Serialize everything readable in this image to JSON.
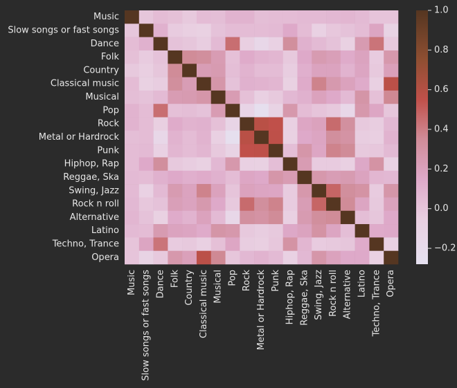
{
  "chart_data": {
    "type": "heatmap",
    "title": "",
    "xlabel": "",
    "ylabel": "",
    "categories": [
      "Music",
      "Slow songs or fast songs",
      "Dance",
      "Folk",
      "Country",
      "Classical music",
      "Musical",
      "Pop",
      "Rock",
      "Metal or Hardrock",
      "Punk",
      "Hiphop, Rap",
      "Reggae, Ska",
      "Swing, Jazz",
      "Rock n roll",
      "Alternative",
      "Latino",
      "Techno, Trance",
      "Opera"
    ],
    "matrix": [
      [
        1.0,
        0.0,
        0.05,
        0.03,
        -0.02,
        0.05,
        0.04,
        0.1,
        0.1,
        0.04,
        0.05,
        0.05,
        0.06,
        0.06,
        0.07,
        0.08,
        0.06,
        0.01,
        0.01
      ],
      [
        0.0,
        1.0,
        0.11,
        -0.03,
        -0.05,
        -0.07,
        0.02,
        0.05,
        0.05,
        0.05,
        0.06,
        0.15,
        0.05,
        -0.08,
        -0.01,
        0.02,
        0.05,
        0.18,
        -0.1
      ],
      [
        0.05,
        0.11,
        1.0,
        0.02,
        0.0,
        -0.04,
        0.06,
        0.45,
        -0.05,
        -0.15,
        -0.08,
        0.33,
        0.11,
        0.06,
        0.02,
        -0.07,
        0.25,
        0.43,
        -0.02
      ],
      [
        0.03,
        -0.03,
        0.02,
        1.0,
        0.35,
        0.33,
        0.24,
        0.03,
        0.14,
        0.1,
        0.08,
        -0.02,
        0.15,
        0.25,
        0.22,
        0.14,
        0.19,
        -0.03,
        0.27
      ],
      [
        -0.02,
        -0.05,
        0.0,
        0.35,
        1.0,
        0.23,
        0.25,
        0.04,
        0.1,
        0.05,
        0.05,
        -0.04,
        0.12,
        0.19,
        0.19,
        0.1,
        0.18,
        -0.02,
        0.21
      ],
      [
        0.05,
        -0.07,
        -0.04,
        0.33,
        0.23,
        1.0,
        0.28,
        0.02,
        0.11,
        0.1,
        0.08,
        -0.07,
        0.14,
        0.38,
        0.26,
        0.2,
        0.14,
        -0.06,
        0.57
      ],
      [
        0.04,
        0.02,
        0.06,
        0.24,
        0.25,
        0.28,
        1.0,
        0.24,
        0.03,
        -0.06,
        -0.02,
        0.07,
        0.11,
        0.2,
        0.15,
        0.06,
        0.29,
        0.03,
        0.36
      ],
      [
        0.1,
        0.05,
        0.45,
        0.03,
        0.04,
        0.02,
        0.24,
        1.0,
        -0.12,
        -0.25,
        -0.1,
        0.27,
        0.05,
        0.01,
        -0.02,
        -0.15,
        0.27,
        0.17,
        0.0
      ],
      [
        0.1,
        0.05,
        -0.05,
        0.14,
        0.1,
        0.11,
        0.03,
        -0.12,
        1.0,
        0.58,
        0.55,
        -0.06,
        0.17,
        0.2,
        0.46,
        0.32,
        -0.02,
        -0.04,
        0.07
      ],
      [
        0.04,
        0.05,
        -0.15,
        0.1,
        0.05,
        0.1,
        -0.06,
        -0.25,
        0.58,
        1.0,
        0.56,
        -0.07,
        0.15,
        0.18,
        0.33,
        0.3,
        -0.04,
        -0.05,
        0.1
      ],
      [
        0.05,
        0.06,
        -0.08,
        0.08,
        0.05,
        0.08,
        -0.02,
        -0.1,
        0.55,
        0.56,
        1.0,
        0.04,
        0.28,
        0.17,
        0.38,
        0.35,
        -0.02,
        -0.01,
        0.06
      ],
      [
        0.05,
        0.15,
        0.33,
        -0.02,
        -0.04,
        -0.07,
        0.07,
        0.27,
        -0.06,
        -0.07,
        0.04,
        1.0,
        0.24,
        -0.03,
        -0.03,
        -0.06,
        0.16,
        0.3,
        -0.08
      ],
      [
        0.06,
        0.05,
        0.11,
        0.15,
        0.12,
        0.14,
        0.11,
        0.05,
        0.17,
        0.15,
        0.28,
        0.24,
        1.0,
        0.27,
        0.23,
        0.25,
        0.19,
        0.08,
        0.07
      ],
      [
        0.06,
        -0.08,
        0.06,
        0.25,
        0.19,
        0.38,
        0.2,
        0.01,
        0.2,
        0.18,
        0.17,
        -0.03,
        0.27,
        1.0,
        0.48,
        0.33,
        0.3,
        -0.03,
        0.28
      ],
      [
        0.07,
        -0.01,
        0.02,
        0.22,
        0.19,
        0.26,
        0.15,
        -0.02,
        0.46,
        0.33,
        0.38,
        -0.03,
        0.23,
        0.48,
        1.0,
        0.35,
        0.18,
        -0.02,
        0.2
      ],
      [
        0.08,
        0.02,
        -0.07,
        0.14,
        0.1,
        0.2,
        0.06,
        -0.15,
        0.32,
        0.3,
        0.35,
        -0.06,
        0.25,
        0.33,
        0.35,
        1.0,
        0.04,
        0.0,
        0.15
      ],
      [
        0.06,
        0.05,
        0.25,
        0.19,
        0.18,
        0.14,
        0.29,
        0.27,
        -0.02,
        -0.04,
        -0.02,
        0.16,
        0.19,
        0.3,
        0.18,
        0.04,
        1.0,
        0.14,
        0.15
      ],
      [
        0.01,
        0.18,
        0.43,
        -0.03,
        -0.02,
        -0.06,
        0.03,
        0.17,
        -0.04,
        -0.05,
        -0.01,
        0.3,
        0.08,
        -0.03,
        -0.02,
        0.0,
        0.14,
        1.0,
        -0.08
      ],
      [
        0.01,
        -0.1,
        -0.02,
        0.27,
        0.21,
        0.57,
        0.36,
        0.0,
        0.07,
        0.1,
        0.06,
        -0.08,
        0.07,
        0.28,
        0.2,
        0.15,
        0.15,
        -0.08,
        1.0
      ]
    ],
    "value_range": [
      -0.28,
      1.0
    ],
    "colorbar": {
      "ticks": [
        1.0,
        0.8,
        0.6,
        0.4,
        0.2,
        0.0,
        -0.2
      ],
      "tick_labels": [
        "1.0",
        "0.8",
        "0.6",
        "0.4",
        "0.2",
        "0.0",
        "−0.2"
      ],
      "position": "right"
    },
    "colormap": {
      "stops": [
        {
          "v": -0.28,
          "color": "#e6e1f0"
        },
        {
          "v": -0.05,
          "color": "#e9cfe1"
        },
        {
          "v": 0.15,
          "color": "#dea9c9"
        },
        {
          "v": 0.35,
          "color": "#d08c98"
        },
        {
          "v": 0.55,
          "color": "#c0504a"
        },
        {
          "v": 0.75,
          "color": "#8f4f32"
        },
        {
          "v": 1.0,
          "color": "#553621"
        }
      ]
    },
    "grid": false,
    "background": "#2b2b2b",
    "text_color": "#e6e6e6"
  }
}
